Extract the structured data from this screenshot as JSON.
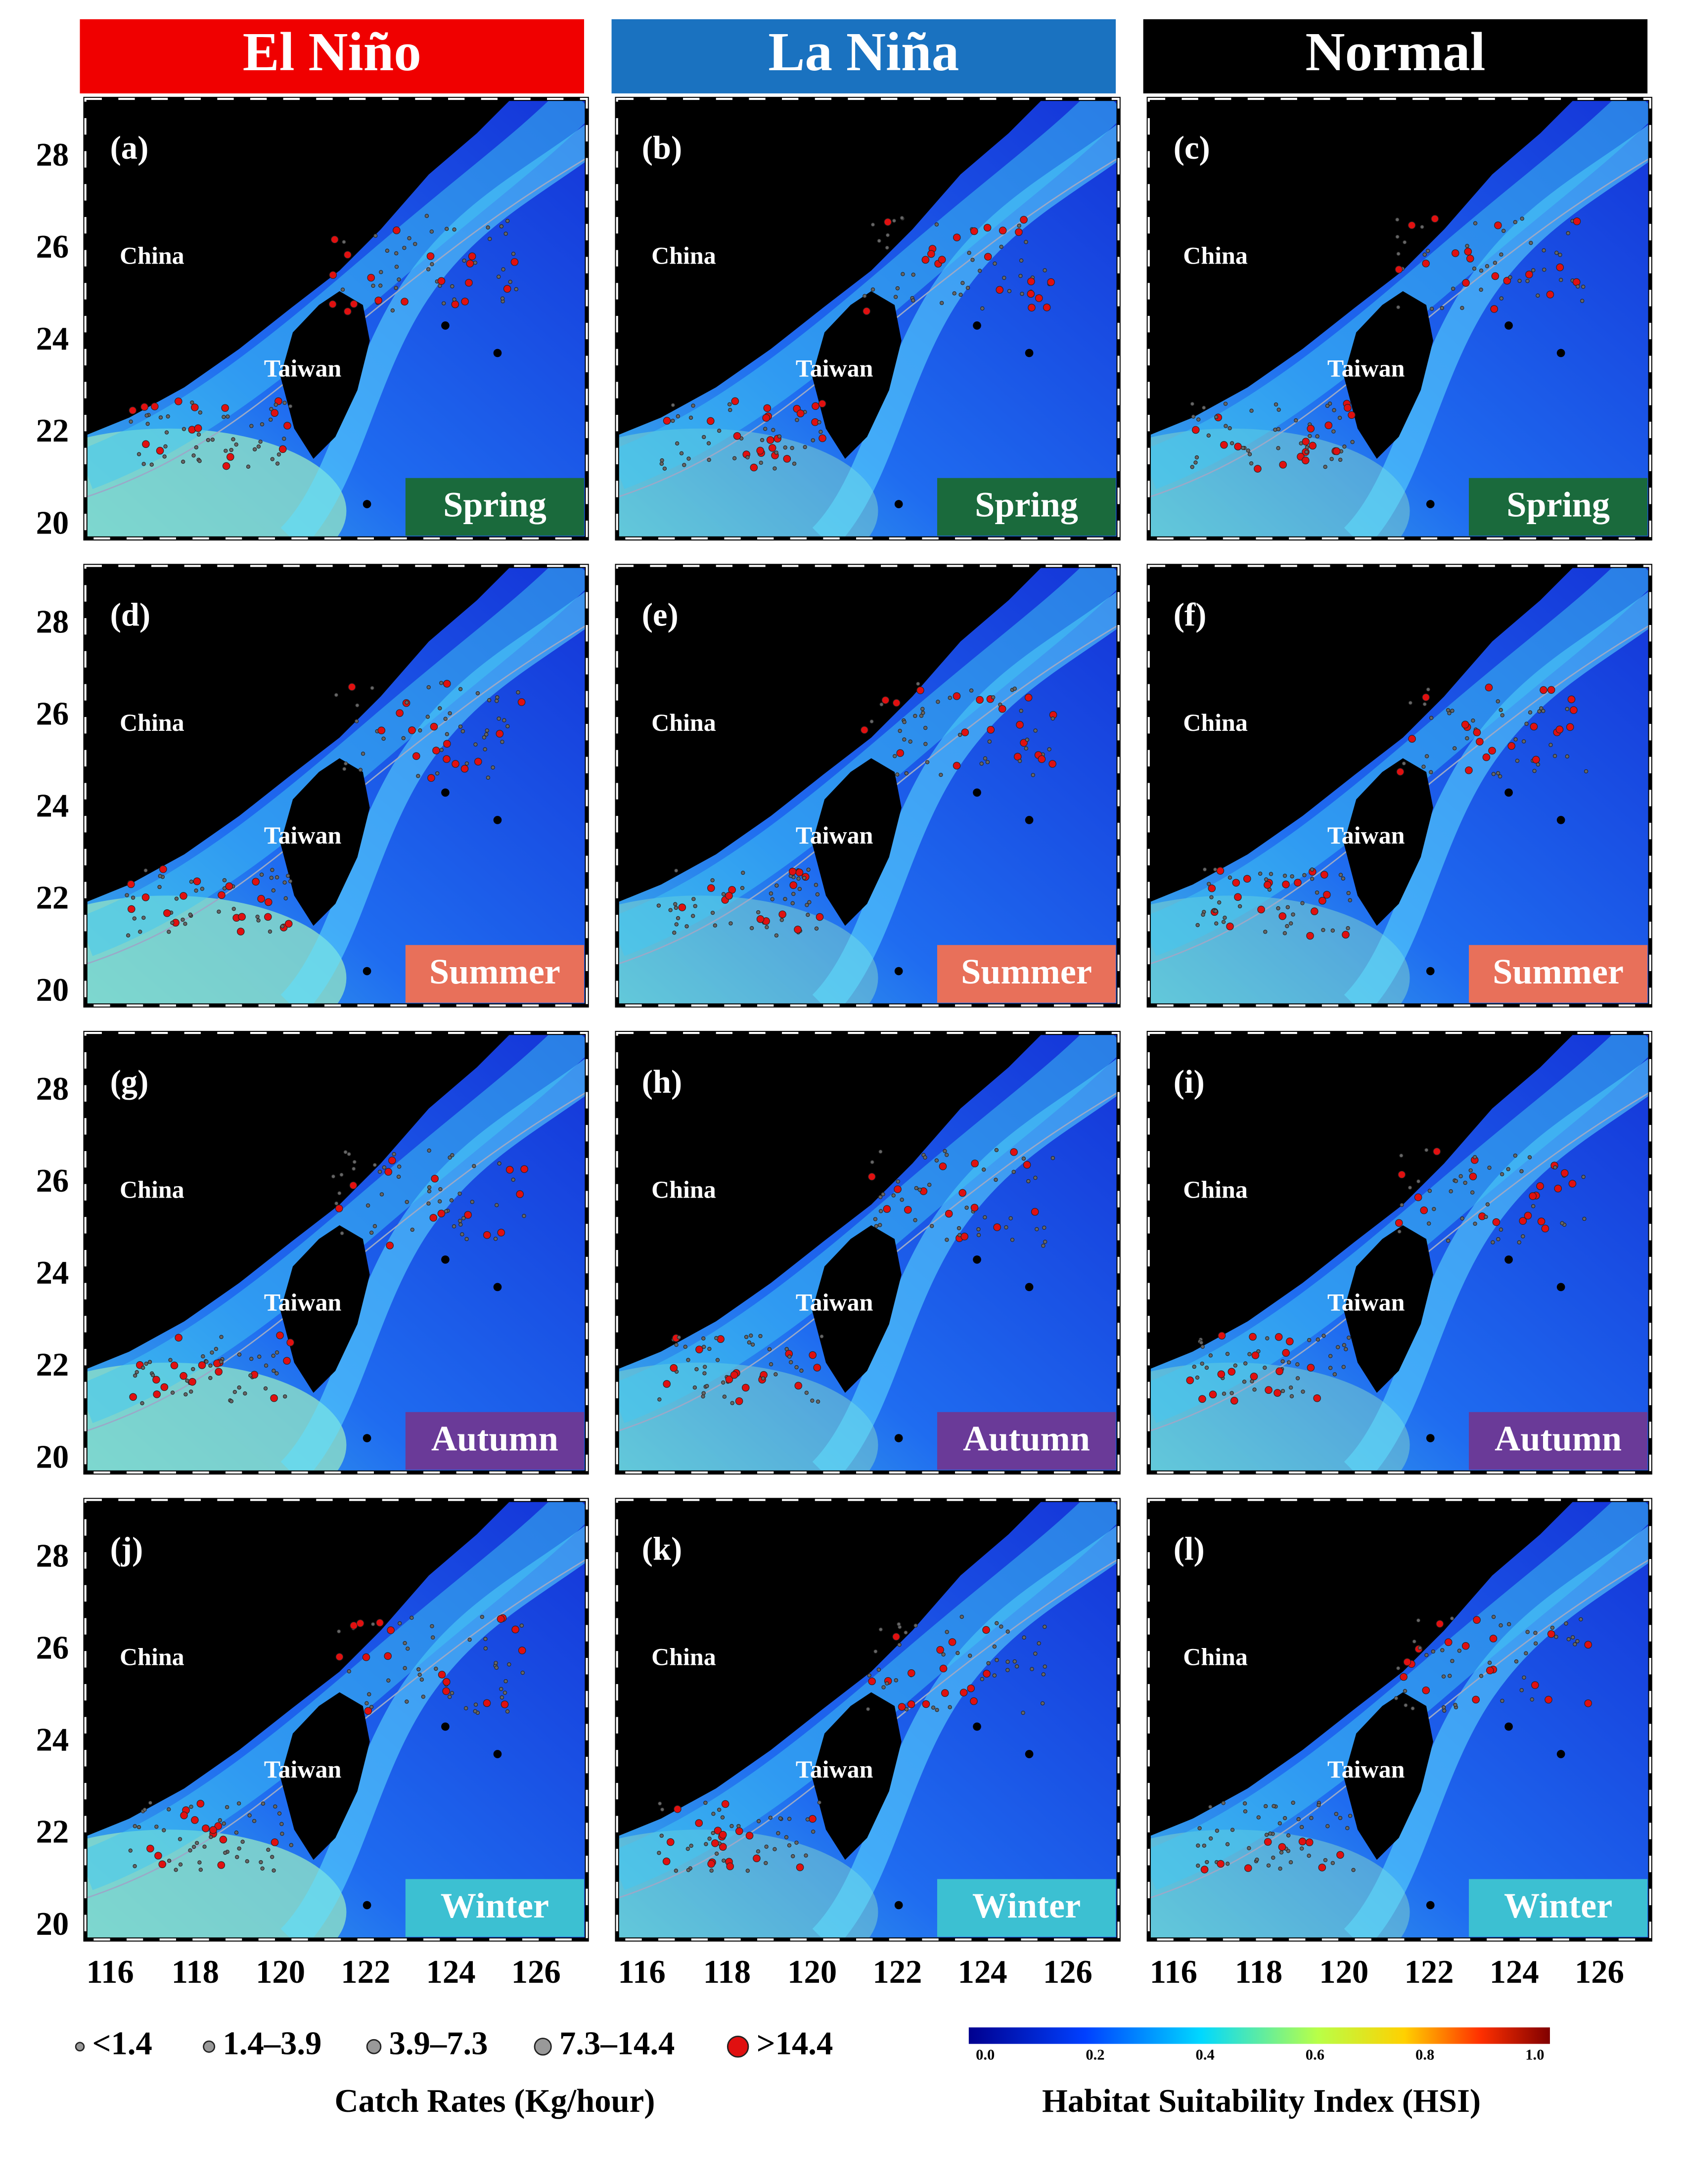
{
  "columns": [
    {
      "title": "El Niño"
    },
    {
      "title": "La Niña"
    },
    {
      "title": "Normal"
    }
  ],
  "panels": [
    {
      "label": "(a)",
      "season": "Spring"
    },
    {
      "label": "(b)",
      "season": "Spring"
    },
    {
      "label": "(c)",
      "season": "Spring"
    },
    {
      "label": "(d)",
      "season": "Summer"
    },
    {
      "label": "(e)",
      "season": "Summer"
    },
    {
      "label": "(f)",
      "season": "Summer"
    },
    {
      "label": "(g)",
      "season": "Autumn"
    },
    {
      "label": "(h)",
      "season": "Autumn"
    },
    {
      "label": "(i)",
      "season": "Autumn"
    },
    {
      "label": "(j)",
      "season": "Winter"
    },
    {
      "label": "(k)",
      "season": "Winter"
    },
    {
      "label": "(l)",
      "season": "Winter"
    }
  ],
  "place_names": {
    "china": "China",
    "taiwan": "Taiwan"
  },
  "lat_ticks": [
    "28",
    "26",
    "24",
    "22",
    "20"
  ],
  "lon_ticks": [
    "116",
    "118",
    "120",
    "122",
    "124",
    "126"
  ],
  "legend": {
    "catch": {
      "title": "Catch Rates (Kg/hour)",
      "classes": [
        "<1.4",
        "1.4–3.9",
        "3.9–7.3",
        "7.3–14.4",
        ">14.4"
      ]
    },
    "hsi": {
      "title": "Habitat Suitability Index (HSI)",
      "ticks": [
        "0.0",
        "0.2",
        "0.4",
        "0.6",
        "0.8",
        "1.0"
      ]
    }
  }
}
